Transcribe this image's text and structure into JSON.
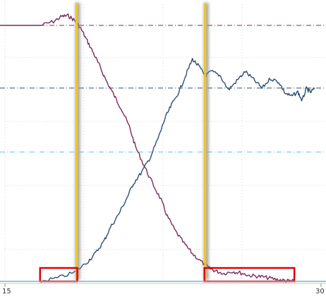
{
  "chart_data": {
    "type": "line",
    "x_ticks": [
      "15",
      "30"
    ],
    "xlim": [
      15,
      30
    ],
    "ylim": [
      0,
      100
    ],
    "grid": true,
    "series": [
      {
        "color": "#7a2a5c",
        "x": [
          16.7,
          17.3,
          17.7,
          18.0,
          18.3,
          18.6,
          18.9,
          19.2,
          19.5,
          19.8,
          20.2,
          20.5,
          20.9,
          21.2,
          21.6,
          22.0,
          22.4,
          22.7,
          23.1,
          23.5,
          23.9,
          24.3,
          24.7,
          25.0,
          25.4,
          25.8,
          26.2,
          26.6,
          27.0,
          27.4,
          27.8,
          28.2,
          28.5,
          28.7
        ],
        "y": [
          100.0,
          101.5,
          103.5,
          103.8,
          102.0,
          98.8,
          94.0,
          89.2,
          84.0,
          78.5,
          72.3,
          67.8,
          60.5,
          52.5,
          45.3,
          38.3,
          32.0,
          25.5,
          19.5,
          14.8,
          10.8,
          7.8,
          5.1,
          4.0,
          3.1,
          3.9,
          3.3,
          2.3,
          2.0,
          1.5,
          0.9,
          0.4,
          0.1,
          0.0
        ]
      },
      {
        "color": "#2e4f73",
        "x": [
          16.7,
          17.5,
          18.3,
          18.9,
          19.3,
          19.7,
          20.0,
          20.4,
          20.8,
          21.1,
          21.5,
          21.9,
          22.3,
          22.6,
          22.9,
          23.3,
          23.6,
          23.9,
          24.2,
          24.5,
          24.8,
          25.2,
          25.6,
          26.0,
          26.4,
          26.8,
          27.2,
          27.6,
          28.0,
          28.3,
          28.6,
          28.9,
          29.1,
          29.3,
          29.5,
          29.7
        ],
        "y": [
          0.0,
          1.3,
          3.5,
          7.5,
          11.0,
          15.8,
          21.0,
          26.3,
          32.8,
          38.3,
          42.8,
          48.5,
          56.5,
          63.8,
          68.8,
          74.8,
          81.0,
          86.8,
          84.0,
          80.3,
          82.0,
          80.5,
          74.8,
          78.3,
          82.0,
          78.8,
          75.5,
          79.3,
          77.8,
          73.5,
          72.3,
          74.0,
          70.5,
          75.3,
          73.8,
          75.5
        ]
      }
    ],
    "reference_lines": [
      {
        "y": 100.0,
        "color": "#7a2a5c",
        "style": "dash-dot"
      },
      {
        "y": 75.5,
        "color": "#2e4f73",
        "style": "dash-dot"
      },
      {
        "y": 50.5,
        "color": "#5ec8e0",
        "style": "dash-dot"
      }
    ],
    "highlight_x": [
      18.4,
      24.5
    ],
    "highlight_color": "#f5c518",
    "boxes": [
      {
        "x": [
          16.7,
          18.4
        ],
        "color": "#e00000"
      },
      {
        "x": [
          24.5,
          28.7
        ],
        "color": "#e00000"
      }
    ]
  }
}
